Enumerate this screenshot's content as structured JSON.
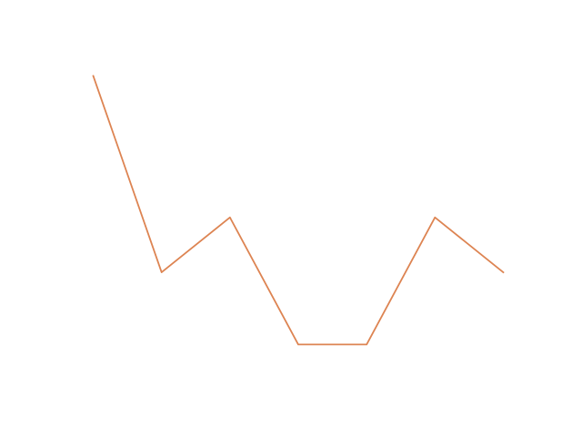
{
  "chart_data": {
    "type": "line",
    "x": [
      0,
      1,
      2,
      3,
      4,
      5,
      6
    ],
    "series": [
      {
        "values": [
          10,
          3.2,
          5.1,
          0.7,
          0.7,
          5.1,
          3.2
        ],
        "color": "#dd8452"
      }
    ],
    "xlim": [
      -0.3,
      6.3
    ],
    "ylim": [
      -0.8,
      10.8
    ],
    "grid": false,
    "axes_visible": false
  }
}
